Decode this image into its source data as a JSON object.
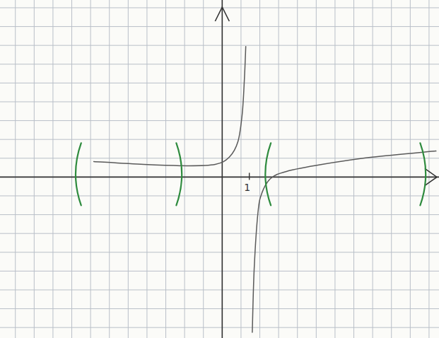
{
  "chart_data": {
    "type": "line",
    "xlim": [
      -8.2,
      8.0
    ],
    "ylim": [
      -6.0,
      6.6
    ],
    "xticks": [
      1
    ],
    "yticks": [],
    "grid": true,
    "series": [
      {
        "color": "#5a5a5a",
        "line_style": "solid",
        "x": [
          -4.74,
          -2.89,
          -1.32,
          -0.26,
          0.26,
          0.58,
          0.74,
          0.82,
          0.87
        ],
        "values": [
          0.58,
          0.47,
          0.42,
          0.47,
          0.74,
          1.32,
          2.37,
          3.68,
          4.87
        ]
      },
      {
        "color": "#5a5a5a",
        "line_style": "solid",
        "x": [
          1.11,
          1.18,
          1.32,
          1.47,
          1.79,
          2.37,
          3.68,
          5.53,
          7.89
        ],
        "values": [
          -5.79,
          -3.42,
          -1.32,
          -0.58,
          -0.05,
          0.21,
          0.47,
          0.74,
          0.97
        ]
      }
    ],
    "intervals": {
      "color": "#2e8b3e",
      "values": [
        [
          -5.3,
          -1.6
        ],
        [
          1.7,
          7.4
        ]
      ]
    }
  }
}
